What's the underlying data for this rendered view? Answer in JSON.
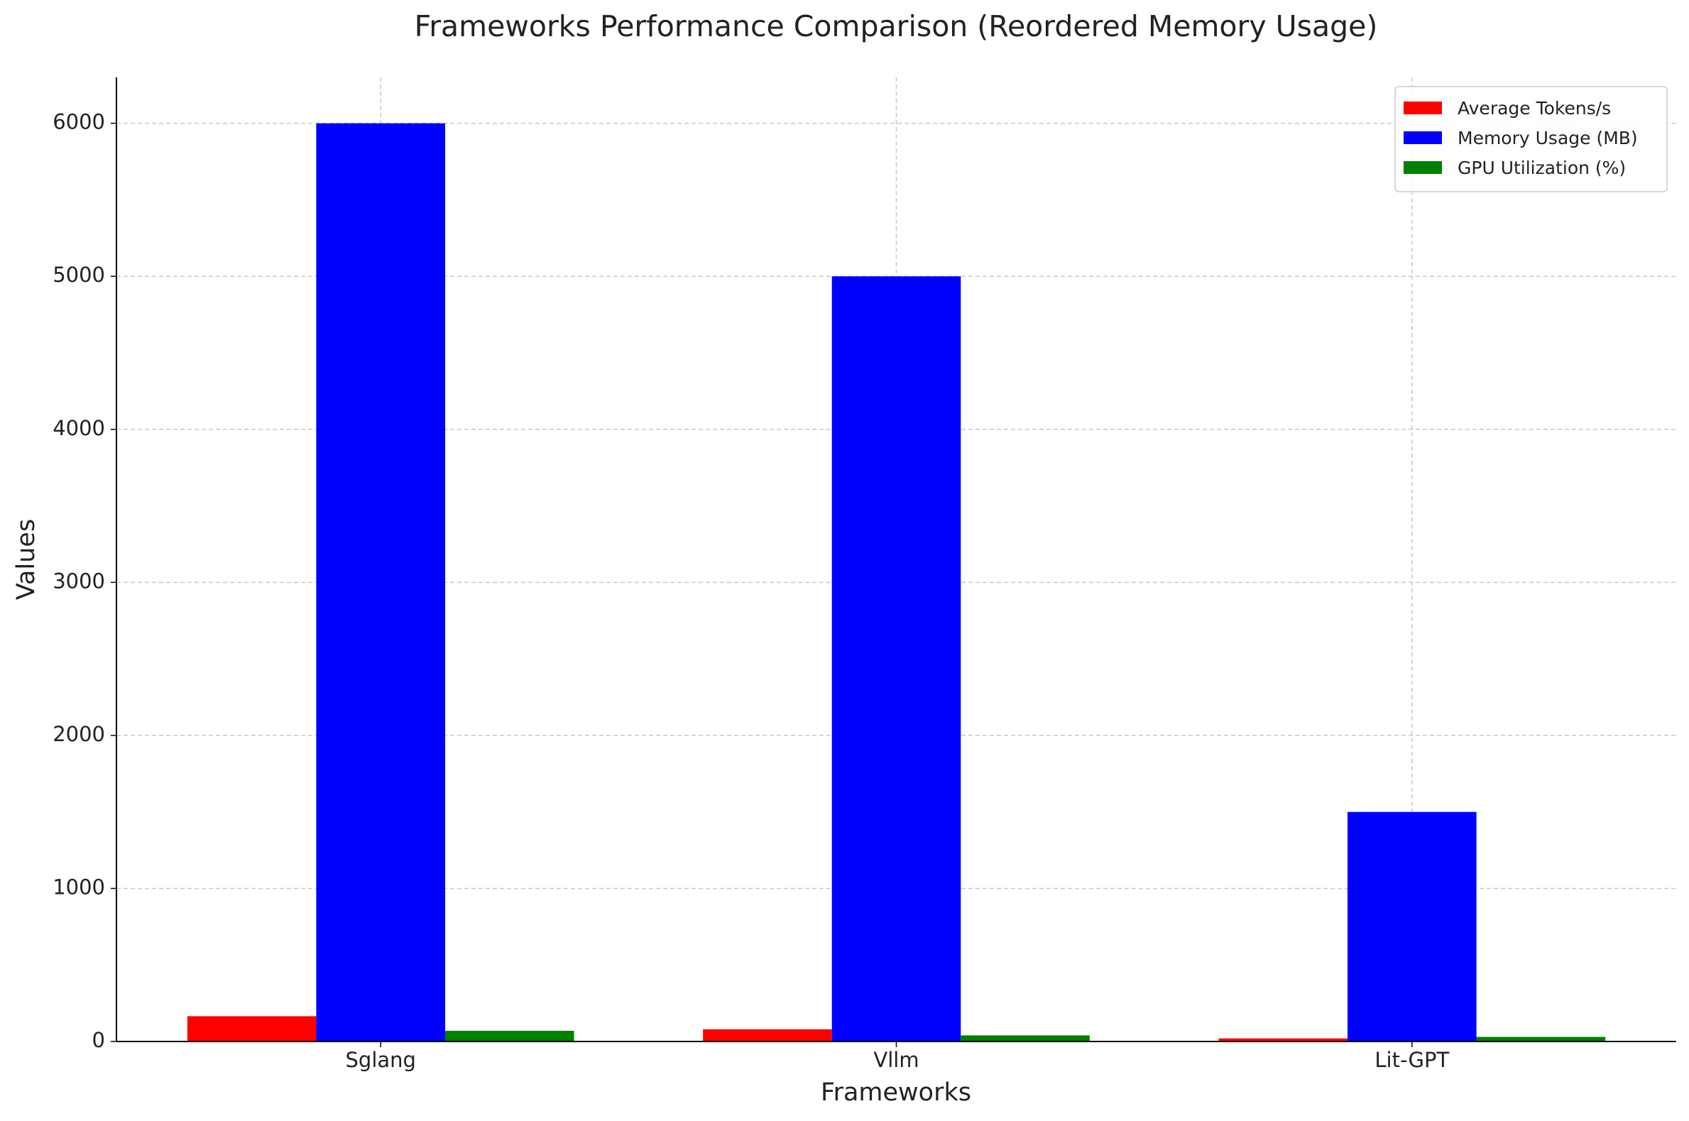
{
  "chart_data": {
    "type": "bar",
    "title": "Frameworks Performance Comparison (Reordered Memory Usage)",
    "x_label": "Frameworks",
    "y_label": "Values",
    "categories": [
      "Sglang",
      "Vllm",
      "Lit-GPT"
    ],
    "series": [
      {
        "name": "Average Tokens/s",
        "color": "#ff0000",
        "values": [
          165,
          80,
          20
        ]
      },
      {
        "name": "Memory Usage (MB)",
        "color": "#0000ff",
        "values": [
          6000,
          5000,
          1500
        ]
      },
      {
        "name": "GPU Utilization (%)",
        "color": "#008000",
        "values": [
          70,
          40,
          30
        ]
      }
    ],
    "ylim": [
      0,
      6300
    ],
    "yticks": [
      0,
      1000,
      2000,
      3000,
      4000,
      5000,
      6000
    ],
    "grid": true,
    "legend": "upper right"
  }
}
